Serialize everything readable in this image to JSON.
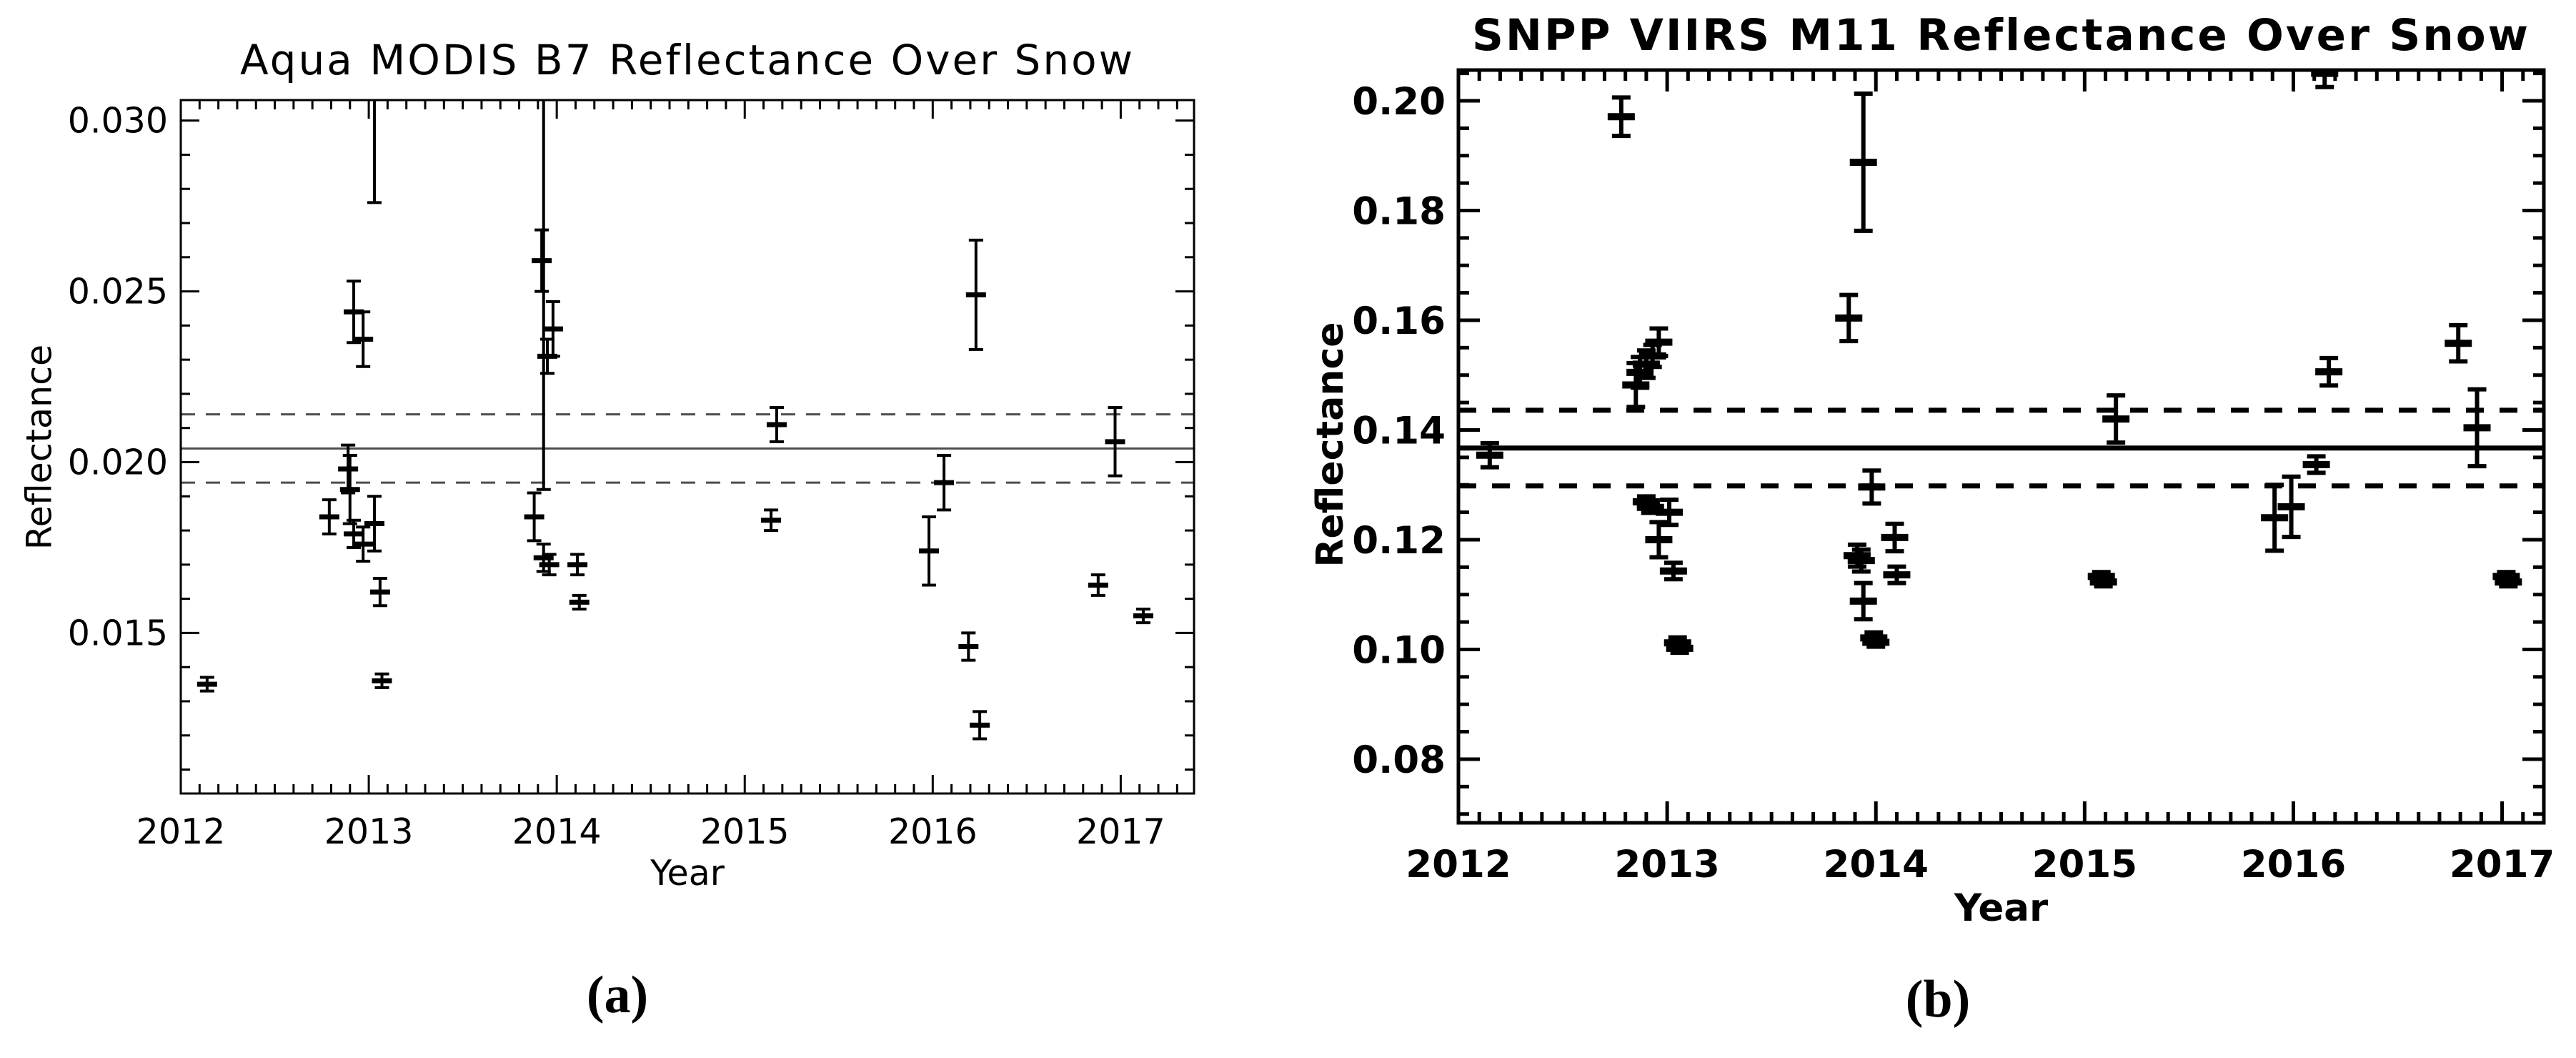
{
  "figure": {
    "background": "#ffffff",
    "ink_color": "#000000",
    "panel_a_tag": "(a)",
    "panel_b_tag": "(b)"
  },
  "chart_data": [
    {
      "type": "scatter",
      "panel_label": "(a)",
      "title": "Aqua MODIS B7 Reflectance Over Snow",
      "xlabel": "Year",
      "ylabel": "Reflectance",
      "xlim": [
        2012,
        2017.39
      ],
      "ylim": [
        0.0103,
        0.0306
      ],
      "grid": false,
      "legend": "none",
      "x_major_ticks": [
        2012,
        2013,
        2014,
        2015,
        2016,
        2017
      ],
      "x_major_labels": [
        "2012",
        "2013",
        "2014",
        "2015",
        "2016",
        "2017"
      ],
      "x_minor_step": 0.1,
      "y_major_ticks": [
        0.015,
        0.02,
        0.025,
        0.03
      ],
      "y_major_labels": [
        "0.015",
        "0.020",
        "0.025",
        "0.030"
      ],
      "y_minor_step": 0.001,
      "mean_line": 0.0204,
      "dashed_lines": [
        0.0214,
        0.0194
      ],
      "style": {
        "guide_color": "#4d4d4d",
        "data_color": "#000000"
      },
      "points": [
        {
          "x": 2012.14,
          "y": 0.0135,
          "e": 0.0002
        },
        {
          "x": 2012.79,
          "y": 0.0184,
          "e": 0.0005
        },
        {
          "x": 2012.89,
          "y": 0.0198,
          "e": 0.0007
        },
        {
          "x": 2012.9,
          "y": 0.0192,
          "e": 0.001
        },
        {
          "x": 2012.92,
          "y": 0.0179,
          "e": 0.0004
        },
        {
          "x": 2012.97,
          "y": 0.0176,
          "e": 0.0005
        },
        {
          "x": 2013.03,
          "y": 0.0182,
          "e": 0.0008
        },
        {
          "x": 2013.06,
          "y": 0.0162,
          "e": 0.0004
        },
        {
          "x": 2013.07,
          "y": 0.0136,
          "e": 0.0002
        },
        {
          "x": 2012.92,
          "y": 0.0244,
          "e": 0.0009
        },
        {
          "x": 2012.97,
          "y": 0.0236,
          "e": 0.0008
        },
        {
          "x": 2013.92,
          "y": 0.0259,
          "e": 0.0009
        },
        {
          "x": 2013.95,
          "y": 0.0231,
          "e": 0.0005
        },
        {
          "x": 2013.98,
          "y": 0.0239,
          "e": 0.0008
        },
        {
          "x": 2013.88,
          "y": 0.0184,
          "e": 0.0007
        },
        {
          "x": 2013.93,
          "y": 0.0172,
          "e": 0.0004
        },
        {
          "x": 2013.96,
          "y": 0.017,
          "e": 0.0003
        },
        {
          "x": 2014.11,
          "y": 0.017,
          "e": 0.0003
        },
        {
          "x": 2014.12,
          "y": 0.0159,
          "e": 0.0002
        },
        {
          "x": 2015.14,
          "y": 0.0183,
          "e": 0.0003
        },
        {
          "x": 2015.17,
          "y": 0.0211,
          "e": 0.0005
        },
        {
          "x": 2015.98,
          "y": 0.0174,
          "e": 0.001
        },
        {
          "x": 2016.06,
          "y": 0.0194,
          "e": 0.0008
        },
        {
          "x": 2016.19,
          "y": 0.0146,
          "e": 0.0004
        },
        {
          "x": 2016.23,
          "y": 0.0249,
          "e": 0.0016
        },
        {
          "x": 2016.25,
          "y": 0.0123,
          "e": 0.0004
        },
        {
          "x": 2016.88,
          "y": 0.0164,
          "e": 0.0003
        },
        {
          "x": 2016.97,
          "y": 0.0206,
          "e": 0.001
        },
        {
          "x": 2017.12,
          "y": 0.0155,
          "e": 0.0002
        },
        {
          "x": 2013.03,
          "y": 0.034,
          "e": 0.0064
        },
        {
          "x": 2013.93,
          "y": 0.034,
          "e": 0.0148
        }
      ]
    },
    {
      "type": "scatter",
      "panel_label": "(b)",
      "title": "SNPP VIIRS M11 Reflectance Over Snow",
      "xlabel": "Year",
      "ylabel": "Reflectance",
      "xlim": [
        2012,
        2017.2
      ],
      "ylim": [
        0.0684,
        0.2056
      ],
      "grid": false,
      "legend": "none",
      "x_major_ticks": [
        2012,
        2013,
        2014,
        2015,
        2016,
        2017
      ],
      "x_major_labels": [
        "2012",
        "2013",
        "2014",
        "2015",
        "2016",
        "2017"
      ],
      "x_minor_step": 0.1,
      "y_major_ticks": [
        0.08,
        0.1,
        0.12,
        0.14,
        0.16,
        0.18,
        0.2
      ],
      "y_major_labels": [
        "0.08",
        "0.10",
        "0.12",
        "0.14",
        "0.16",
        "0.18",
        "0.20"
      ],
      "y_minor_step": 0.005,
      "mean_line": 0.1367,
      "dashed_lines": [
        0.1436,
        0.1298
      ],
      "style": {
        "guide_color": "#000000",
        "data_color": "#000000"
      },
      "points": [
        {
          "x": 2012.15,
          "y": 0.1354,
          "e": 0.0022
        },
        {
          "x": 2012.78,
          "y": 0.1971,
          "e": 0.0035
        },
        {
          "x": 2012.85,
          "y": 0.1482,
          "e": 0.004
        },
        {
          "x": 2012.87,
          "y": 0.1505,
          "e": 0.0028
        },
        {
          "x": 2012.9,
          "y": 0.152,
          "e": 0.0025
        },
        {
          "x": 2012.93,
          "y": 0.1535,
          "e": 0.002
        },
        {
          "x": 2012.96,
          "y": 0.156,
          "e": 0.0025
        },
        {
          "x": 2012.9,
          "y": 0.1269,
          "e": 0.001
        },
        {
          "x": 2012.92,
          "y": 0.1259,
          "e": 0.001
        },
        {
          "x": 2013.01,
          "y": 0.125,
          "e": 0.0023
        },
        {
          "x": 2012.96,
          "y": 0.12,
          "e": 0.0032
        },
        {
          "x": 2013.03,
          "y": 0.1143,
          "e": 0.0015
        },
        {
          "x": 2013.05,
          "y": 0.1012,
          "e": 0.001
        },
        {
          "x": 2013.06,
          "y": 0.1002,
          "e": 0.0008
        },
        {
          "x": 2013.87,
          "y": 0.1604,
          "e": 0.0042
        },
        {
          "x": 2013.94,
          "y": 0.1888,
          "e": 0.0125
        },
        {
          "x": 2013.91,
          "y": 0.1171,
          "e": 0.002
        },
        {
          "x": 2013.93,
          "y": 0.1162,
          "e": 0.002
        },
        {
          "x": 2013.94,
          "y": 0.1088,
          "e": 0.0033
        },
        {
          "x": 2013.98,
          "y": 0.1296,
          "e": 0.003
        },
        {
          "x": 2013.99,
          "y": 0.1021,
          "e": 0.001
        },
        {
          "x": 2014.0,
          "y": 0.1013,
          "e": 0.0008
        },
        {
          "x": 2014.09,
          "y": 0.1204,
          "e": 0.0025
        },
        {
          "x": 2014.1,
          "y": 0.1136,
          "e": 0.0015
        },
        {
          "x": 2015.08,
          "y": 0.1133,
          "e": 0.0008
        },
        {
          "x": 2015.09,
          "y": 0.1123,
          "e": 0.0008
        },
        {
          "x": 2015.15,
          "y": 0.142,
          "e": 0.0043
        },
        {
          "x": 2015.91,
          "y": 0.124,
          "e": 0.006
        },
        {
          "x": 2015.99,
          "y": 0.126,
          "e": 0.0055
        },
        {
          "x": 2016.11,
          "y": 0.1337,
          "e": 0.0015
        },
        {
          "x": 2016.15,
          "y": 0.205,
          "e": 0.0025
        },
        {
          "x": 2016.17,
          "y": 0.1506,
          "e": 0.0025
        },
        {
          "x": 2016.79,
          "y": 0.1558,
          "e": 0.0033
        },
        {
          "x": 2016.88,
          "y": 0.1404,
          "e": 0.007
        },
        {
          "x": 2017.02,
          "y": 0.1133,
          "e": 0.0008
        },
        {
          "x": 2017.03,
          "y": 0.1123,
          "e": 0.0008
        }
      ]
    }
  ]
}
